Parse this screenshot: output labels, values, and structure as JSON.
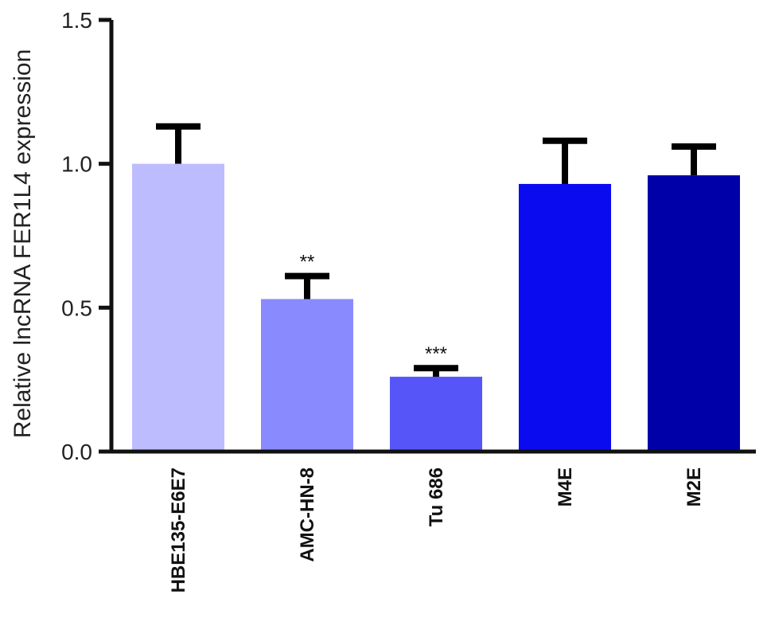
{
  "chart_data": {
    "type": "bar",
    "title": "",
    "xlabel": "",
    "ylabel": "Relative lncRNA FER1L4 expression",
    "ylim": [
      0,
      1.5
    ],
    "yticks": [
      "0.0",
      "0.5",
      "1.0",
      "1.5"
    ],
    "ytick_values": [
      0,
      0.5,
      1.0,
      1.5
    ],
    "grid": false,
    "legend": "none",
    "categories": [
      "HBE135-E6E7",
      "AMC-HN-8",
      "Tu 686",
      "M4E",
      "M2E"
    ],
    "values": [
      1.0,
      0.53,
      0.26,
      0.93,
      0.96
    ],
    "error_upper": [
      0.13,
      0.08,
      0.03,
      0.15,
      0.1
    ],
    "significance": [
      "",
      "**",
      "***",
      "",
      ""
    ],
    "colors": [
      "#bcbcff",
      "#8a8aff",
      "#5656f8",
      "#0b0bf0",
      "#0000a8"
    ],
    "error_color": "#000000"
  }
}
